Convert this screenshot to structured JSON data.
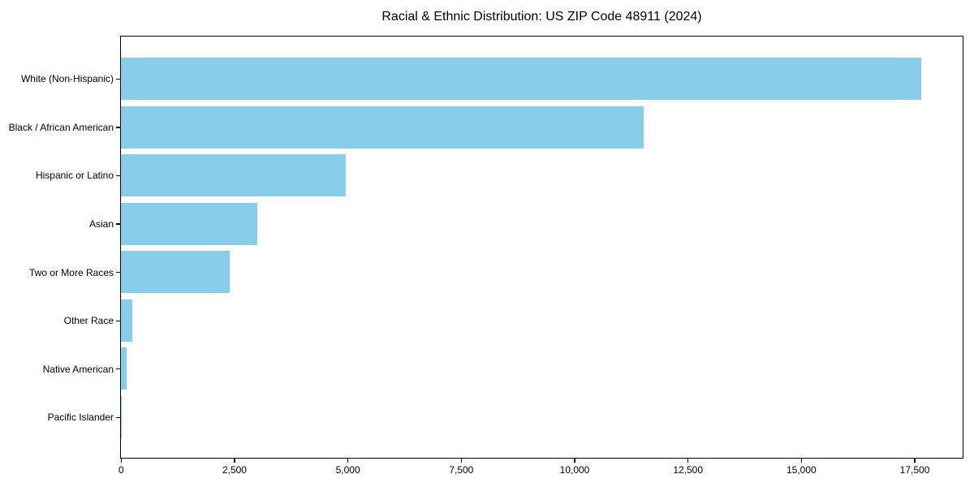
{
  "figure": {
    "background": "#ffffff",
    "text_color": "#000000"
  },
  "chart_data": {
    "type": "bar",
    "orientation": "horizontal",
    "title": "Racial & Ethnic Distribution: US ZIP Code 48911 (2024)",
    "categories": [
      "White (Non-Hispanic)",
      "Black / African American",
      "Hispanic or Latino",
      "Asian",
      "Two or More Races",
      "Other Race",
      "Native American",
      "Pacific Islander"
    ],
    "values": [
      17650,
      11530,
      4950,
      3000,
      2400,
      250,
      120,
      15
    ],
    "bar_color": "#87CEEB",
    "xlabel": "",
    "ylabel": "",
    "xlim": [
      0,
      18550
    ],
    "x_ticks": [
      0,
      2500,
      5000,
      7500,
      10000,
      12500,
      15000,
      17500
    ],
    "x_tick_labels": [
      "0",
      "2,500",
      "5,000",
      "7,500",
      "10,000",
      "12,500",
      "15,000",
      "17,500"
    ],
    "grid": false,
    "legend": "none",
    "frame": "full-box"
  }
}
